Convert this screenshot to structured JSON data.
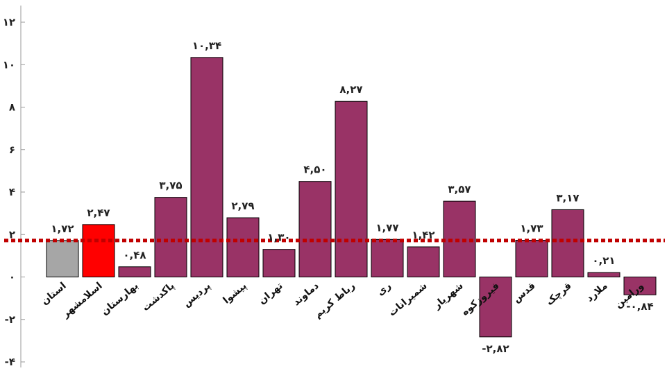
{
  "chart_data": {
    "type": "bar",
    "title": "",
    "xlabel": "",
    "ylabel": "",
    "ylim": [
      -4,
      12
    ],
    "yticks": [
      -4,
      -2,
      0,
      2,
      4,
      6,
      8,
      10,
      12
    ],
    "ytick_labels": [
      "-۴",
      "-۲",
      "۰",
      "۲",
      "۴",
      "۶",
      "۸",
      "۱۰",
      "۱۲"
    ],
    "categories": [
      "استان",
      "اسلامشهر",
      "بهارستان",
      "پاکدشت",
      "پردیس",
      "پیشوا",
      "تهران",
      "دماوند",
      "رباط کریم",
      "ری",
      "شمیرانات",
      "شهریار",
      "فیروزکوه",
      "قدس",
      "قرچک",
      "ملارد",
      "ورامین"
    ],
    "values": [
      1.72,
      2.47,
      0.48,
      3.75,
      10.34,
      2.79,
      1.3,
      4.5,
      8.27,
      1.77,
      1.42,
      3.57,
      -2.82,
      1.73,
      3.17,
      0.21,
      -0.84
    ],
    "value_labels": [
      "۱,۷۲",
      "۲,۴۷",
      "۰,۴۸",
      "۳,۷۵",
      "۱۰,۳۴",
      "۲,۷۹",
      "۱,۳۰",
      "۴,۵۰",
      "۸,۲۷",
      "۱,۷۷",
      "۱,۴۲",
      "۳,۵۷",
      "-۲,۸۲",
      "۱,۷۳",
      "۳,۱۷",
      "۰,۲۱",
      "-۰,۸۴"
    ],
    "bar_colors": [
      "#a6a6a6",
      "#ff0000",
      "#993366",
      "#993366",
      "#993366",
      "#993366",
      "#993366",
      "#993366",
      "#993366",
      "#993366",
      "#993366",
      "#993366",
      "#993366",
      "#993366",
      "#993366",
      "#993366",
      "#993366"
    ],
    "reference_line": {
      "value": 1.72,
      "color": "#c00000",
      "style": "dotted"
    },
    "grid": false,
    "legend": "none"
  }
}
